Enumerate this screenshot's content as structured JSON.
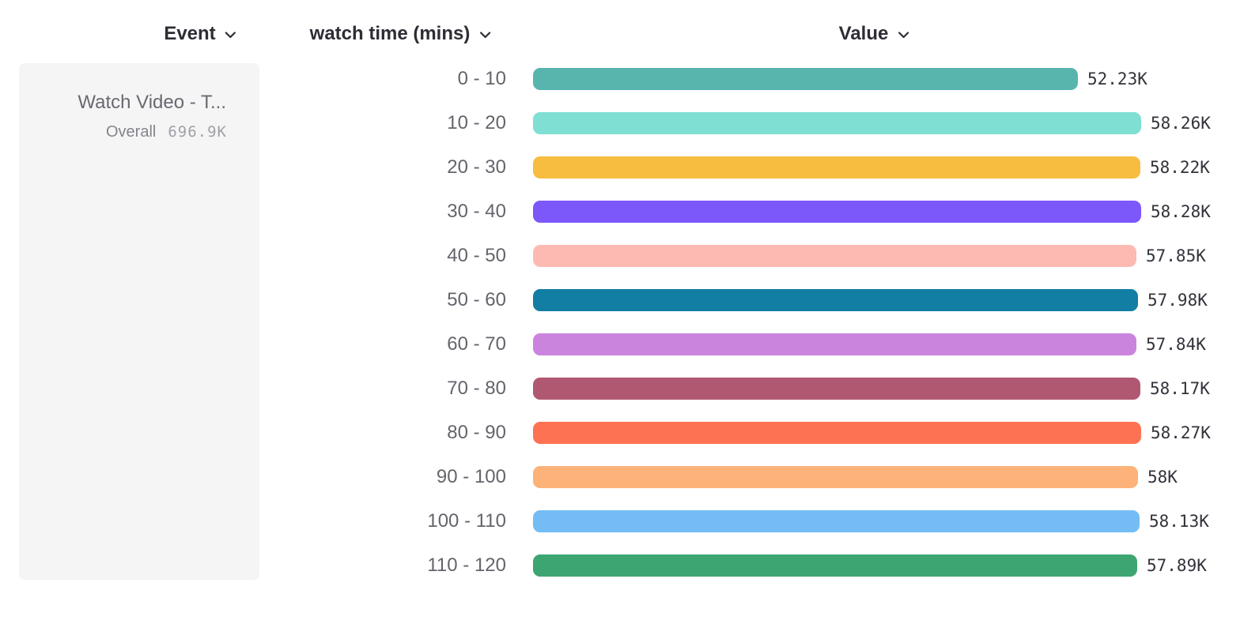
{
  "header": {
    "columns": [
      {
        "id": "event",
        "label": "Event"
      },
      {
        "id": "breakdown",
        "label": "watch time (mins)"
      },
      {
        "id": "value",
        "label": "Value"
      }
    ],
    "chevron_icon": "chevron-down"
  },
  "event_panel": {
    "title": "Watch Video - T...",
    "overall_label": "Overall",
    "overall_value": "696.9K"
  },
  "chart_data": {
    "type": "bar",
    "orientation": "horizontal",
    "title": "",
    "xlabel": "Value",
    "ylabel": "watch time (mins)",
    "categories": [
      "0 - 10",
      "10 - 20",
      "20 - 30",
      "30 - 40",
      "40 - 50",
      "50 - 60",
      "60 - 70",
      "70 - 80",
      "80 - 90",
      "90 - 100",
      "100 - 110",
      "110 - 120"
    ],
    "values_k": [
      52.23,
      58.26,
      58.22,
      58.28,
      57.85,
      57.98,
      57.84,
      58.17,
      58.27,
      58.0,
      58.13,
      57.89
    ],
    "value_labels": [
      "52.23K",
      "58.26K",
      "58.22K",
      "58.28K",
      "57.85K",
      "57.98K",
      "57.84K",
      "58.17K",
      "58.27K",
      "58K",
      "58.13K",
      "57.89K"
    ],
    "colors": [
      "#58b5ae",
      "#7fdfd3",
      "#f7bd40",
      "#7c58fb",
      "#fdbab2",
      "#137ea3",
      "#ca84de",
      "#b05872",
      "#fe7254",
      "#fdb279",
      "#74bdf4",
      "#3da571"
    ],
    "xlim": [
      0,
      58.28
    ],
    "grid": false,
    "legend": false
  },
  "colors": {
    "header_text": "#2d2d35",
    "category_text": "#64646c",
    "value_text": "#32323a",
    "panel_bg": "#f5f5f6"
  }
}
